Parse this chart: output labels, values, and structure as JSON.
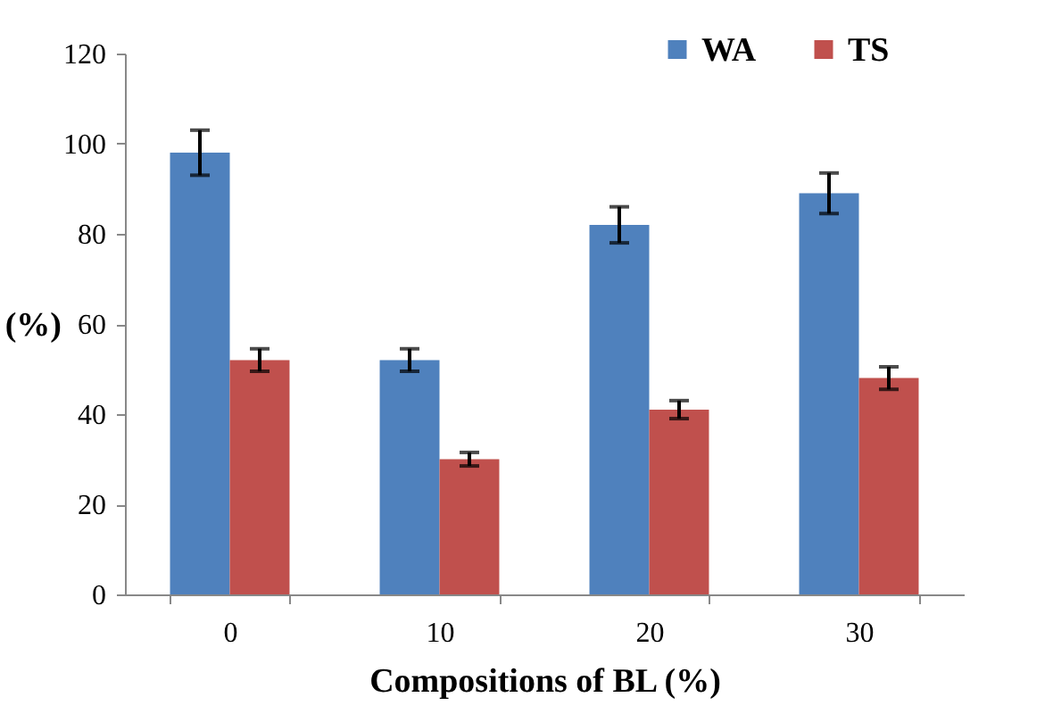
{
  "chart_data": {
    "type": "bar",
    "xlabel": "Compositions of BL (%)",
    "ylabel": "(%)",
    "categories": [
      "0",
      "10",
      "20",
      "30"
    ],
    "series": [
      {
        "name": "WA",
        "color": "#4f81bd",
        "values": [
          98,
          52,
          82,
          89
        ],
        "errors": [
          5,
          2.5,
          4,
          4.5
        ]
      },
      {
        "name": "TS",
        "color": "#c0504d",
        "values": [
          52,
          30,
          41,
          48
        ],
        "errors": [
          2.5,
          1.5,
          2,
          2.5
        ]
      }
    ],
    "ylim": [
      0,
      120
    ],
    "yticks": [
      0,
      20,
      40,
      60,
      80,
      100,
      120
    ],
    "grid": false,
    "legend": "top right"
  }
}
